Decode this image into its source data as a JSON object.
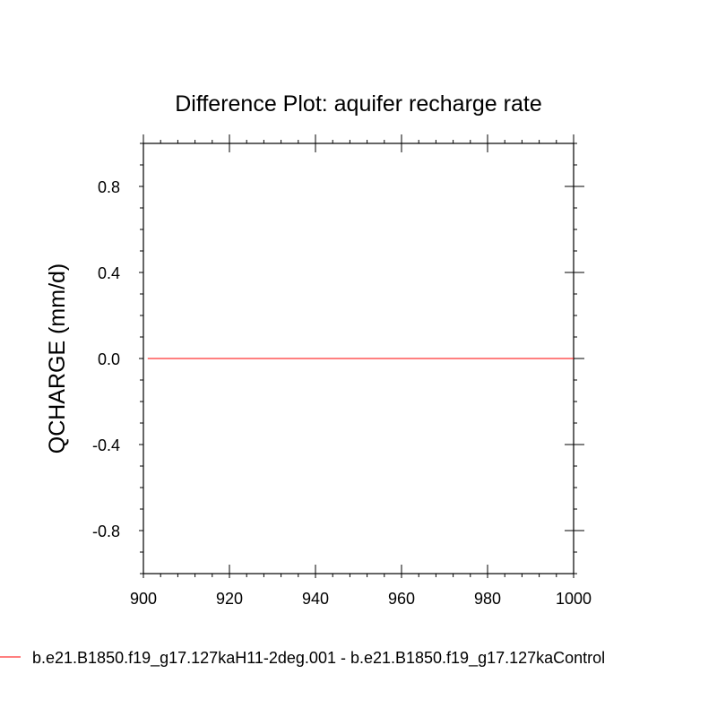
{
  "chart_data": {
    "type": "line",
    "title": "Difference Plot: aquifer recharge rate",
    "xlabel": "",
    "ylabel": "QCHARGE  (mm/d)",
    "xlim": [
      900,
      1000
    ],
    "ylim": [
      -1.0,
      1.0
    ],
    "x_ticks": [
      900,
      920,
      940,
      960,
      980,
      1000
    ],
    "x_tick_labels": [
      "900",
      "920",
      "940",
      "960",
      "980",
      "1000"
    ],
    "y_ticks": [
      -0.8,
      -0.4,
      0.0,
      0.4,
      0.8
    ],
    "y_tick_labels": [
      "-0.8",
      "-0.4",
      "0.0",
      "0.4",
      "0.8"
    ],
    "grid": false,
    "legend_position": "bottom",
    "series": [
      {
        "name": "b.e21.B1850.f19_g17.127kaH11-2deg.001 - b.e21.B1850.f19_g17.127kaControl",
        "color": "#ff0000",
        "x": [
          901,
          1000
        ],
        "y": [
          0.0,
          0.0
        ]
      }
    ]
  }
}
